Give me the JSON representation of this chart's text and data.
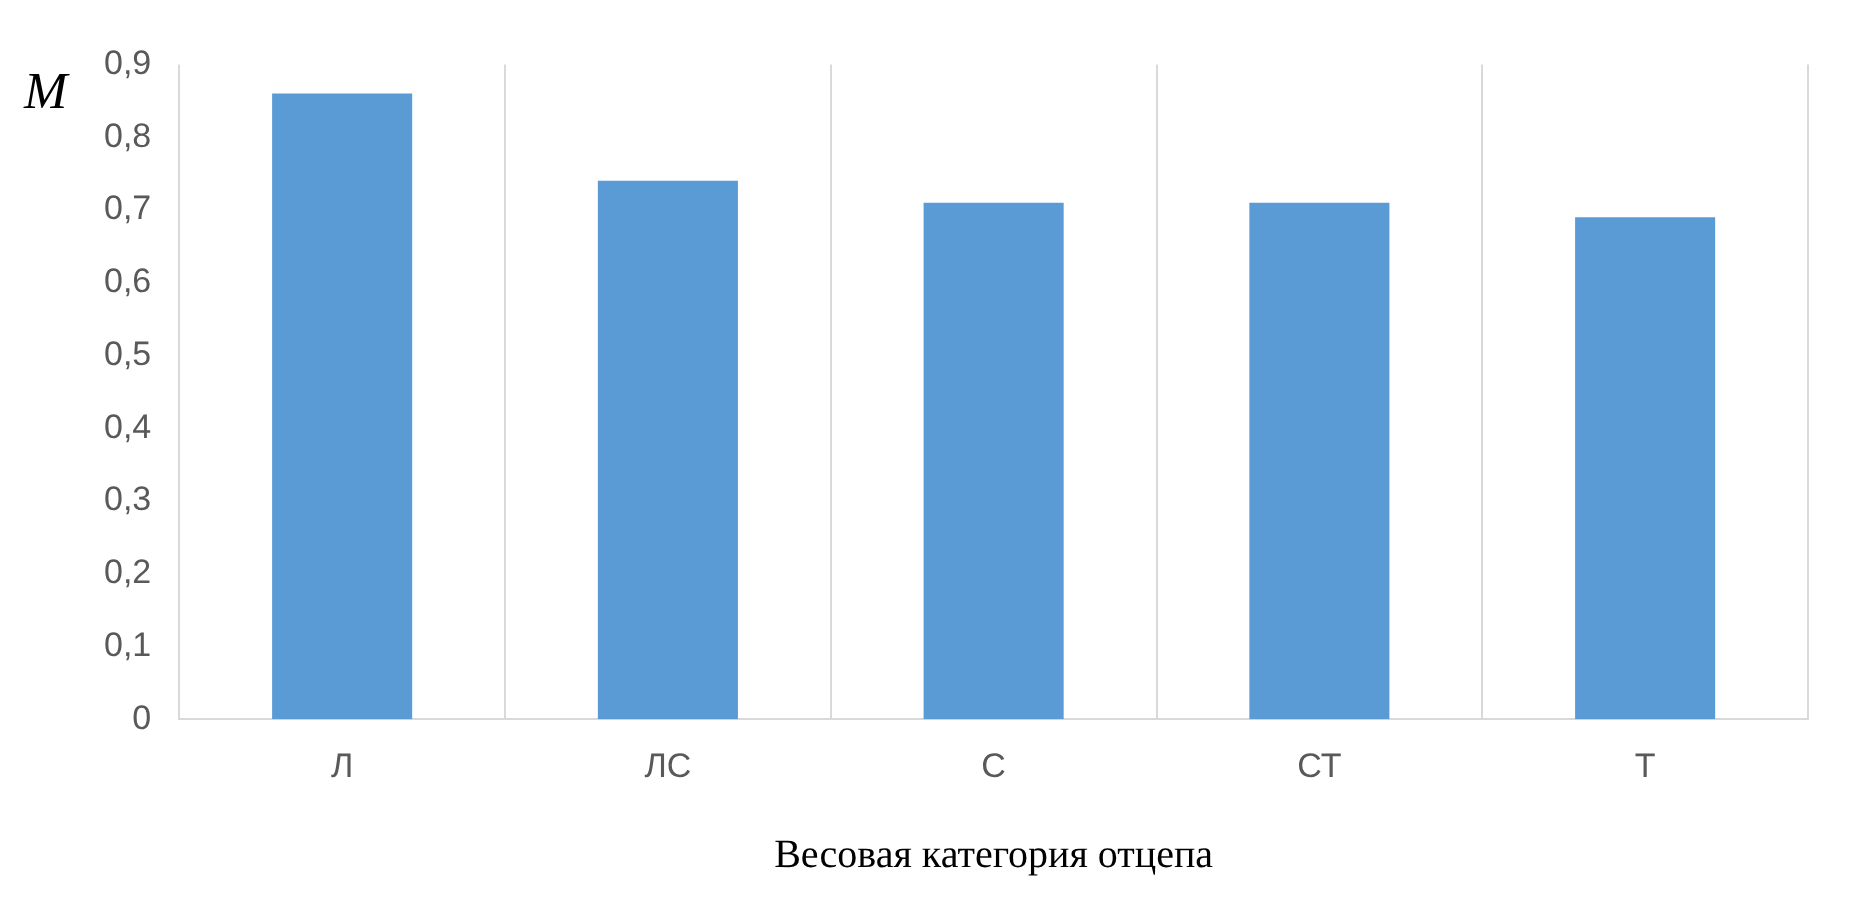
{
  "chart_data": {
    "type": "bar",
    "xlabel": "Весовая категория отцепа",
    "ylabel": "M",
    "categories": [
      "Л",
      "ЛС",
      "С",
      "СТ",
      "Т"
    ],
    "values": [
      0.86,
      0.74,
      0.71,
      0.71,
      0.69
    ],
    "color": "#5b9bd5",
    "ylim": [
      0,
      0.9
    ],
    "yticks": [
      0,
      {
        "value": 0.1,
        "label": "0,1"
      },
      {
        "value": 0.2,
        "label": "0,2"
      },
      {
        "value": 0.3,
        "label": "0,3"
      },
      {
        "value": 0.4,
        "label": "0,4"
      },
      {
        "value": 0.5,
        "label": "0,5"
      },
      {
        "value": 0.6,
        "label": "0,6"
      },
      {
        "value": 0.7,
        "label": "0,7"
      },
      {
        "value": 0.8,
        "label": "0,8"
      },
      {
        "value": 0.9,
        "label": "0,9"
      }
    ],
    "grid": "x",
    "legend": false
  }
}
